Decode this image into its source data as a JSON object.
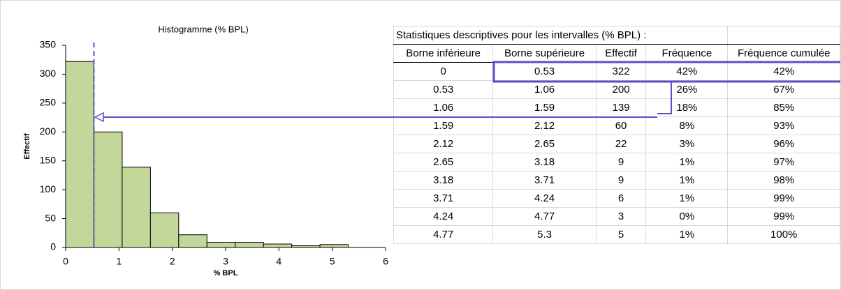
{
  "chart_data": {
    "type": "histogram",
    "title": "Histogramme  (% BPL)",
    "x_label": "% BPL",
    "y_label": "Effectif",
    "bins": [
      0,
      0.53,
      1.06,
      1.59,
      2.12,
      2.65,
      3.18,
      3.71,
      4.24,
      4.77,
      5.3
    ],
    "values": [
      322,
      200,
      139,
      60,
      22,
      9,
      9,
      6,
      3,
      5
    ],
    "color": "#c4d79b",
    "xlim": [
      0,
      6
    ],
    "xticks": [
      0,
      1,
      2,
      3,
      4,
      5,
      6
    ],
    "ylim": [
      0,
      350
    ],
    "yticks": [
      0,
      50,
      100,
      150,
      200,
      250,
      300,
      350
    ],
    "vline": 0.53,
    "vline_color": "#5b4fc4"
  },
  "table": {
    "title": "Statistiques descriptives pour les intervalles (% BPL) :",
    "header": [
      "Borne inférieure",
      "Borne supérieure",
      "Effectif",
      "Fréquence",
      "Fréquence cumulée"
    ],
    "rows": [
      [
        "0",
        "0.53",
        "322",
        "42%",
        "42%"
      ],
      [
        "0.53",
        "1.06",
        "200",
        "26%",
        "67%"
      ],
      [
        "1.06",
        "1.59",
        "139",
        "18%",
        "85%"
      ],
      [
        "1.59",
        "2.12",
        "60",
        "8%",
        "93%"
      ],
      [
        "2.12",
        "2.65",
        "22",
        "3%",
        "96%"
      ],
      [
        "2.65",
        "3.18",
        "9",
        "1%",
        "97%"
      ],
      [
        "3.18",
        "3.71",
        "9",
        "1%",
        "98%"
      ],
      [
        "3.71",
        "4.24",
        "6",
        "1%",
        "99%"
      ],
      [
        "4.24",
        "4.77",
        "3",
        "0%",
        "99%"
      ],
      [
        "4.77",
        "5.3",
        "5",
        "1%",
        "100%"
      ]
    ]
  }
}
